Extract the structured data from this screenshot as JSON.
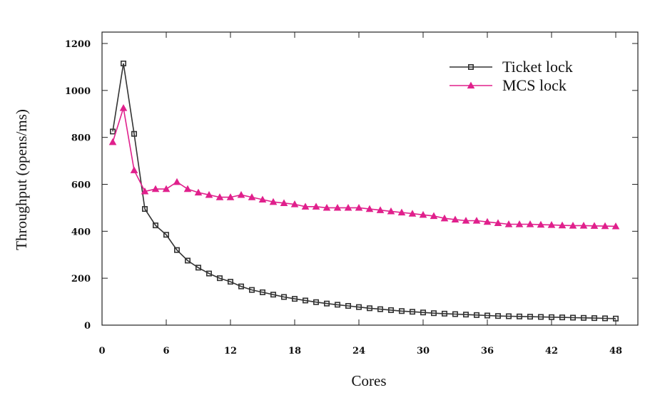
{
  "chart_data": {
    "type": "line",
    "title": "",
    "xlabel": "Cores",
    "ylabel": "Throughput (opens/ms)",
    "xlim": [
      0,
      50
    ],
    "ylim": [
      0,
      1200
    ],
    "xticks": [
      0,
      6,
      12,
      18,
      24,
      30,
      36,
      42,
      48
    ],
    "yticks": [
      0,
      200,
      400,
      600,
      800,
      1000,
      1200
    ],
    "grid": false,
    "legend_position": "top-right",
    "x": [
      1,
      2,
      3,
      4,
      5,
      6,
      7,
      8,
      9,
      10,
      11,
      12,
      13,
      14,
      15,
      16,
      17,
      18,
      19,
      20,
      21,
      22,
      23,
      24,
      25,
      26,
      27,
      28,
      29,
      30,
      31,
      32,
      33,
      34,
      35,
      36,
      37,
      38,
      39,
      40,
      41,
      42,
      43,
      44,
      45,
      46,
      47,
      48
    ],
    "series": [
      {
        "name": "Ticket lock",
        "color": "#333333",
        "marker": "square",
        "values": [
          825,
          1115,
          815,
          495,
          425,
          385,
          320,
          275,
          245,
          220,
          200,
          185,
          165,
          150,
          140,
          130,
          120,
          112,
          105,
          98,
          92,
          87,
          82,
          77,
          72,
          68,
          64,
          60,
          57,
          54,
          51,
          49,
          47,
          45,
          43,
          41,
          39,
          38,
          37,
          36,
          35,
          34,
          33,
          32,
          31,
          30,
          29,
          28
        ]
      },
      {
        "name": "MCS lock",
        "color": "#e0208c",
        "marker": "triangle",
        "values": [
          780,
          925,
          660,
          570,
          580,
          580,
          610,
          580,
          565,
          555,
          545,
          545,
          555,
          545,
          535,
          525,
          520,
          515,
          505,
          505,
          500,
          500,
          500,
          500,
          495,
          490,
          485,
          480,
          475,
          470,
          465,
          455,
          450,
          445,
          445,
          440,
          435,
          430,
          430,
          430,
          428,
          427,
          425,
          424,
          424,
          423,
          422,
          421
        ]
      }
    ]
  }
}
